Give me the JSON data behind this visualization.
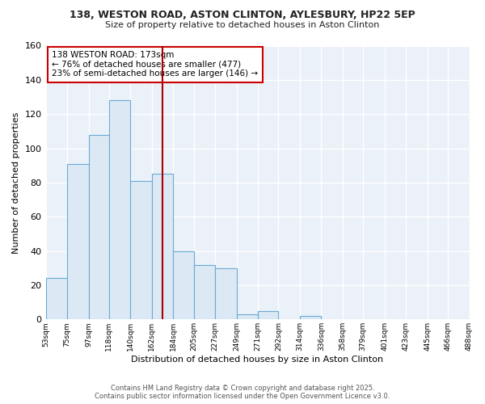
{
  "title1": "138, WESTON ROAD, ASTON CLINTON, AYLESBURY, HP22 5EP",
  "title2": "Size of property relative to detached houses in Aston Clinton",
  "xlabel": "Distribution of detached houses by size in Aston Clinton",
  "ylabel": "Number of detached properties",
  "bins": [
    53,
    75,
    97,
    118,
    140,
    162,
    184,
    205,
    227,
    249,
    271,
    292,
    314,
    336,
    358,
    379,
    401,
    423,
    445,
    466,
    488
  ],
  "counts": [
    24,
    91,
    108,
    128,
    81,
    85,
    40,
    32,
    30,
    3,
    5,
    0,
    2,
    0,
    0,
    0,
    0,
    0,
    0,
    0
  ],
  "bar_facecolor": "#dce9f5",
  "bar_edgecolor": "#6aaad4",
  "vline_x": 173,
  "vline_color": "#aa0000",
  "ylim": [
    0,
    160
  ],
  "yticks": [
    0,
    20,
    40,
    60,
    80,
    100,
    120,
    140,
    160
  ],
  "annotation_text": "138 WESTON ROAD: 173sqm\n← 76% of detached houses are smaller (477)\n23% of semi-detached houses are larger (146) →",
  "annotation_box_facecolor": "#ffffff",
  "annotation_box_edgecolor": "#cc0000",
  "footer_text": "Contains HM Land Registry data © Crown copyright and database right 2025.\nContains public sector information licensed under the Open Government Licence v3.0.",
  "fig_facecolor": "#ffffff",
  "axes_facecolor": "#eaf1f8",
  "grid_color": "#ffffff",
  "tick_labels": [
    "53sqm",
    "75sqm",
    "97sqm",
    "118sqm",
    "140sqm",
    "162sqm",
    "184sqm",
    "205sqm",
    "227sqm",
    "249sqm",
    "271sqm",
    "292sqm",
    "314sqm",
    "336sqm",
    "358sqm",
    "379sqm",
    "401sqm",
    "423sqm",
    "445sqm",
    "466sqm",
    "488sqm"
  ]
}
